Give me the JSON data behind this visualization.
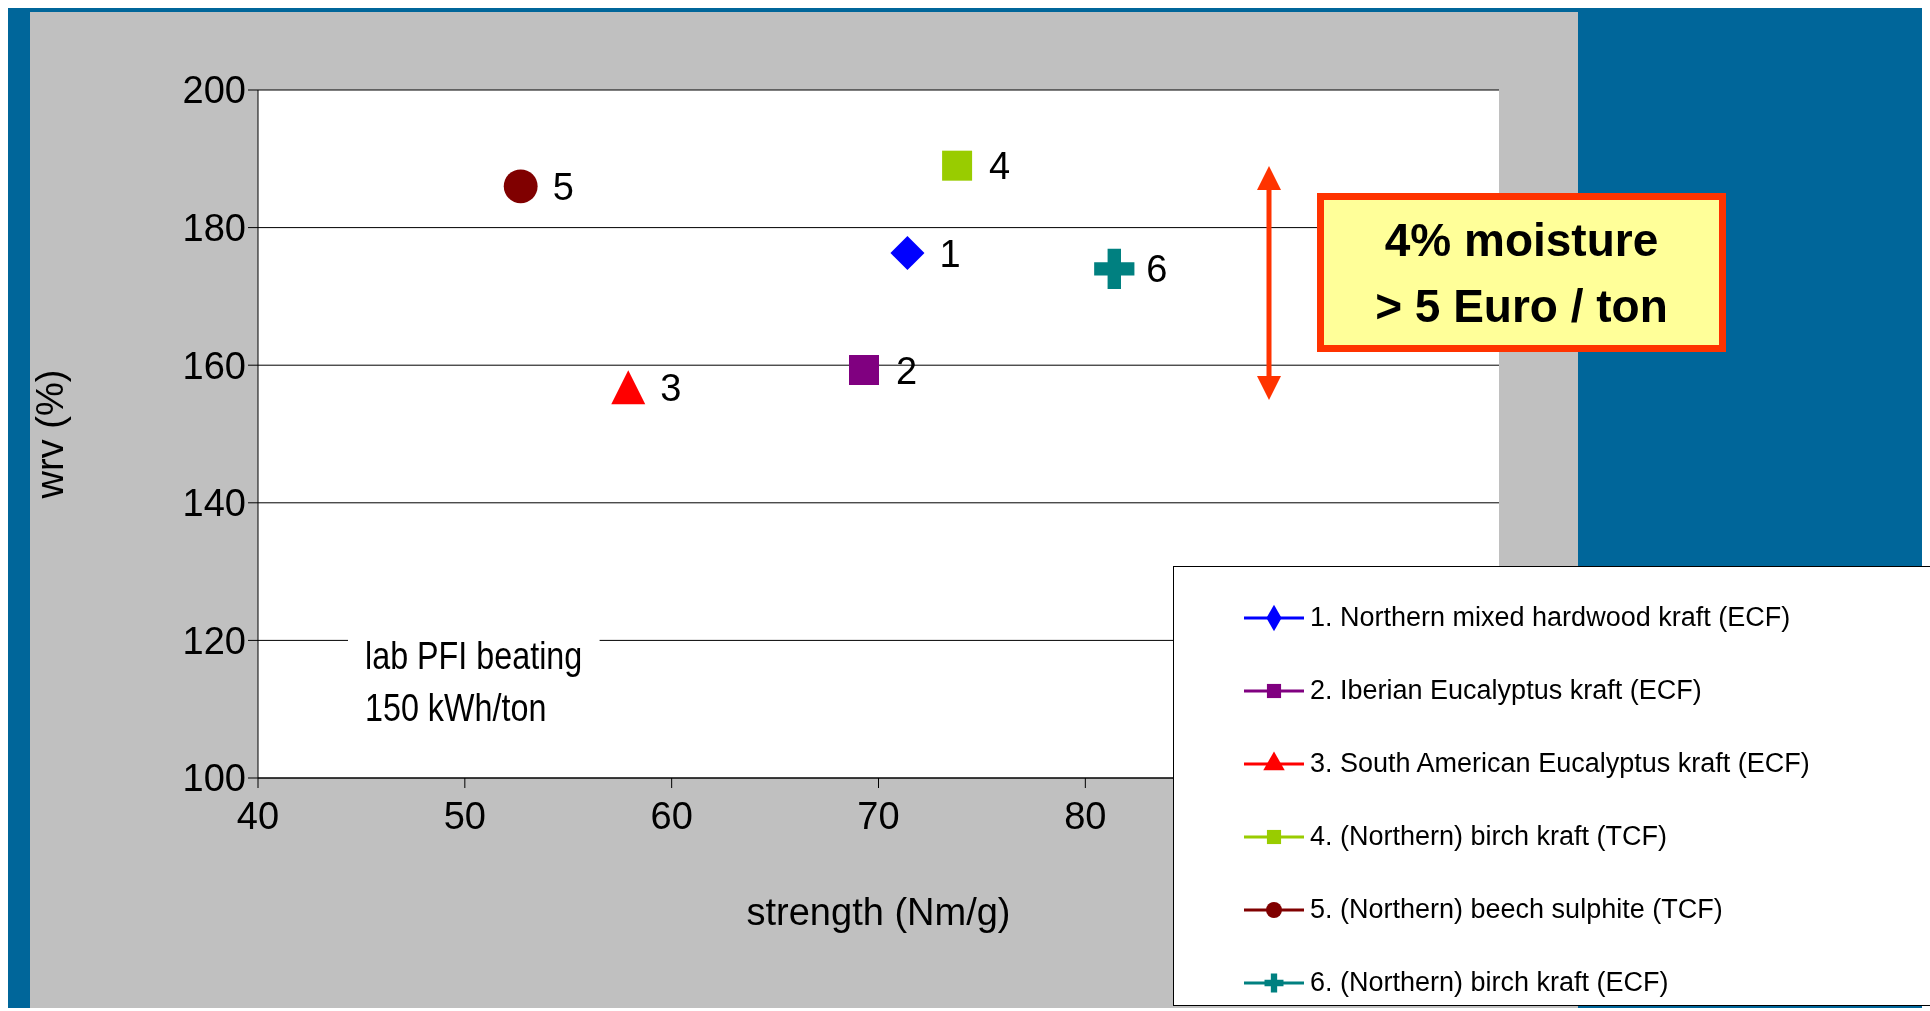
{
  "chart_data": {
    "type": "scatter",
    "xlabel": "strength (Nm/g)",
    "ylabel": "wrv (%)",
    "xlim": [
      40,
      100
    ],
    "xticks": [
      40,
      50,
      60,
      70,
      80
    ],
    "ylim": [
      100,
      200
    ],
    "yticks": [
      100,
      120,
      140,
      160,
      180,
      200
    ],
    "grid": "y",
    "legend": "bottom right",
    "series": [
      {
        "name": "1. Northern mixed hardwood kraft (ECF)",
        "color": "#0000ff",
        "marker": "diamond",
        "x": [
          71.4
        ],
        "values": [
          176.3
        ]
      },
      {
        "name": "2. Iberian Eucalyptus kraft (ECF)",
        "color": "#800080",
        "marker": "square",
        "x": [
          69.3
        ],
        "values": [
          159.3
        ]
      },
      {
        "name": "3. South American Eucalyptus kraft (ECF)",
        "color": "#ff0000",
        "marker": "triangle",
        "x": [
          57.9
        ],
        "values": [
          156.8
        ]
      },
      {
        "name": "4. (Northern) birch kraft (TCF)",
        "color": "#99cc00",
        "marker": "square",
        "x": [
          73.8
        ],
        "values": [
          189.0
        ]
      },
      {
        "name": "5. (Northern) beech sulphite (TCF)",
        "color": "#800000",
        "marker": "circle",
        "x": [
          52.7
        ],
        "values": [
          186.0
        ]
      },
      {
        "name": "6. (Northern) birch kraft (ECF)",
        "color": "#008080",
        "marker": "cross",
        "x": [
          81.4
        ],
        "values": [
          174.0
        ]
      }
    ],
    "annotations": [
      {
        "text": "1",
        "x": 71.4,
        "y": 176.3
      },
      {
        "text": "2",
        "x": 69.3,
        "y": 159.3
      },
      {
        "text": "3",
        "x": 57.9,
        "y": 156.8
      },
      {
        "text": "4",
        "x": 73.8,
        "y": 189.0
      },
      {
        "text": "5",
        "x": 52.7,
        "y": 186.0
      },
      {
        "text": "6",
        "x": 81.4,
        "y": 174.0
      },
      "lab PFI beating\n150 kWh/ton",
      "4% moisture\n> 5 Euro / ton"
    ]
  }
}
